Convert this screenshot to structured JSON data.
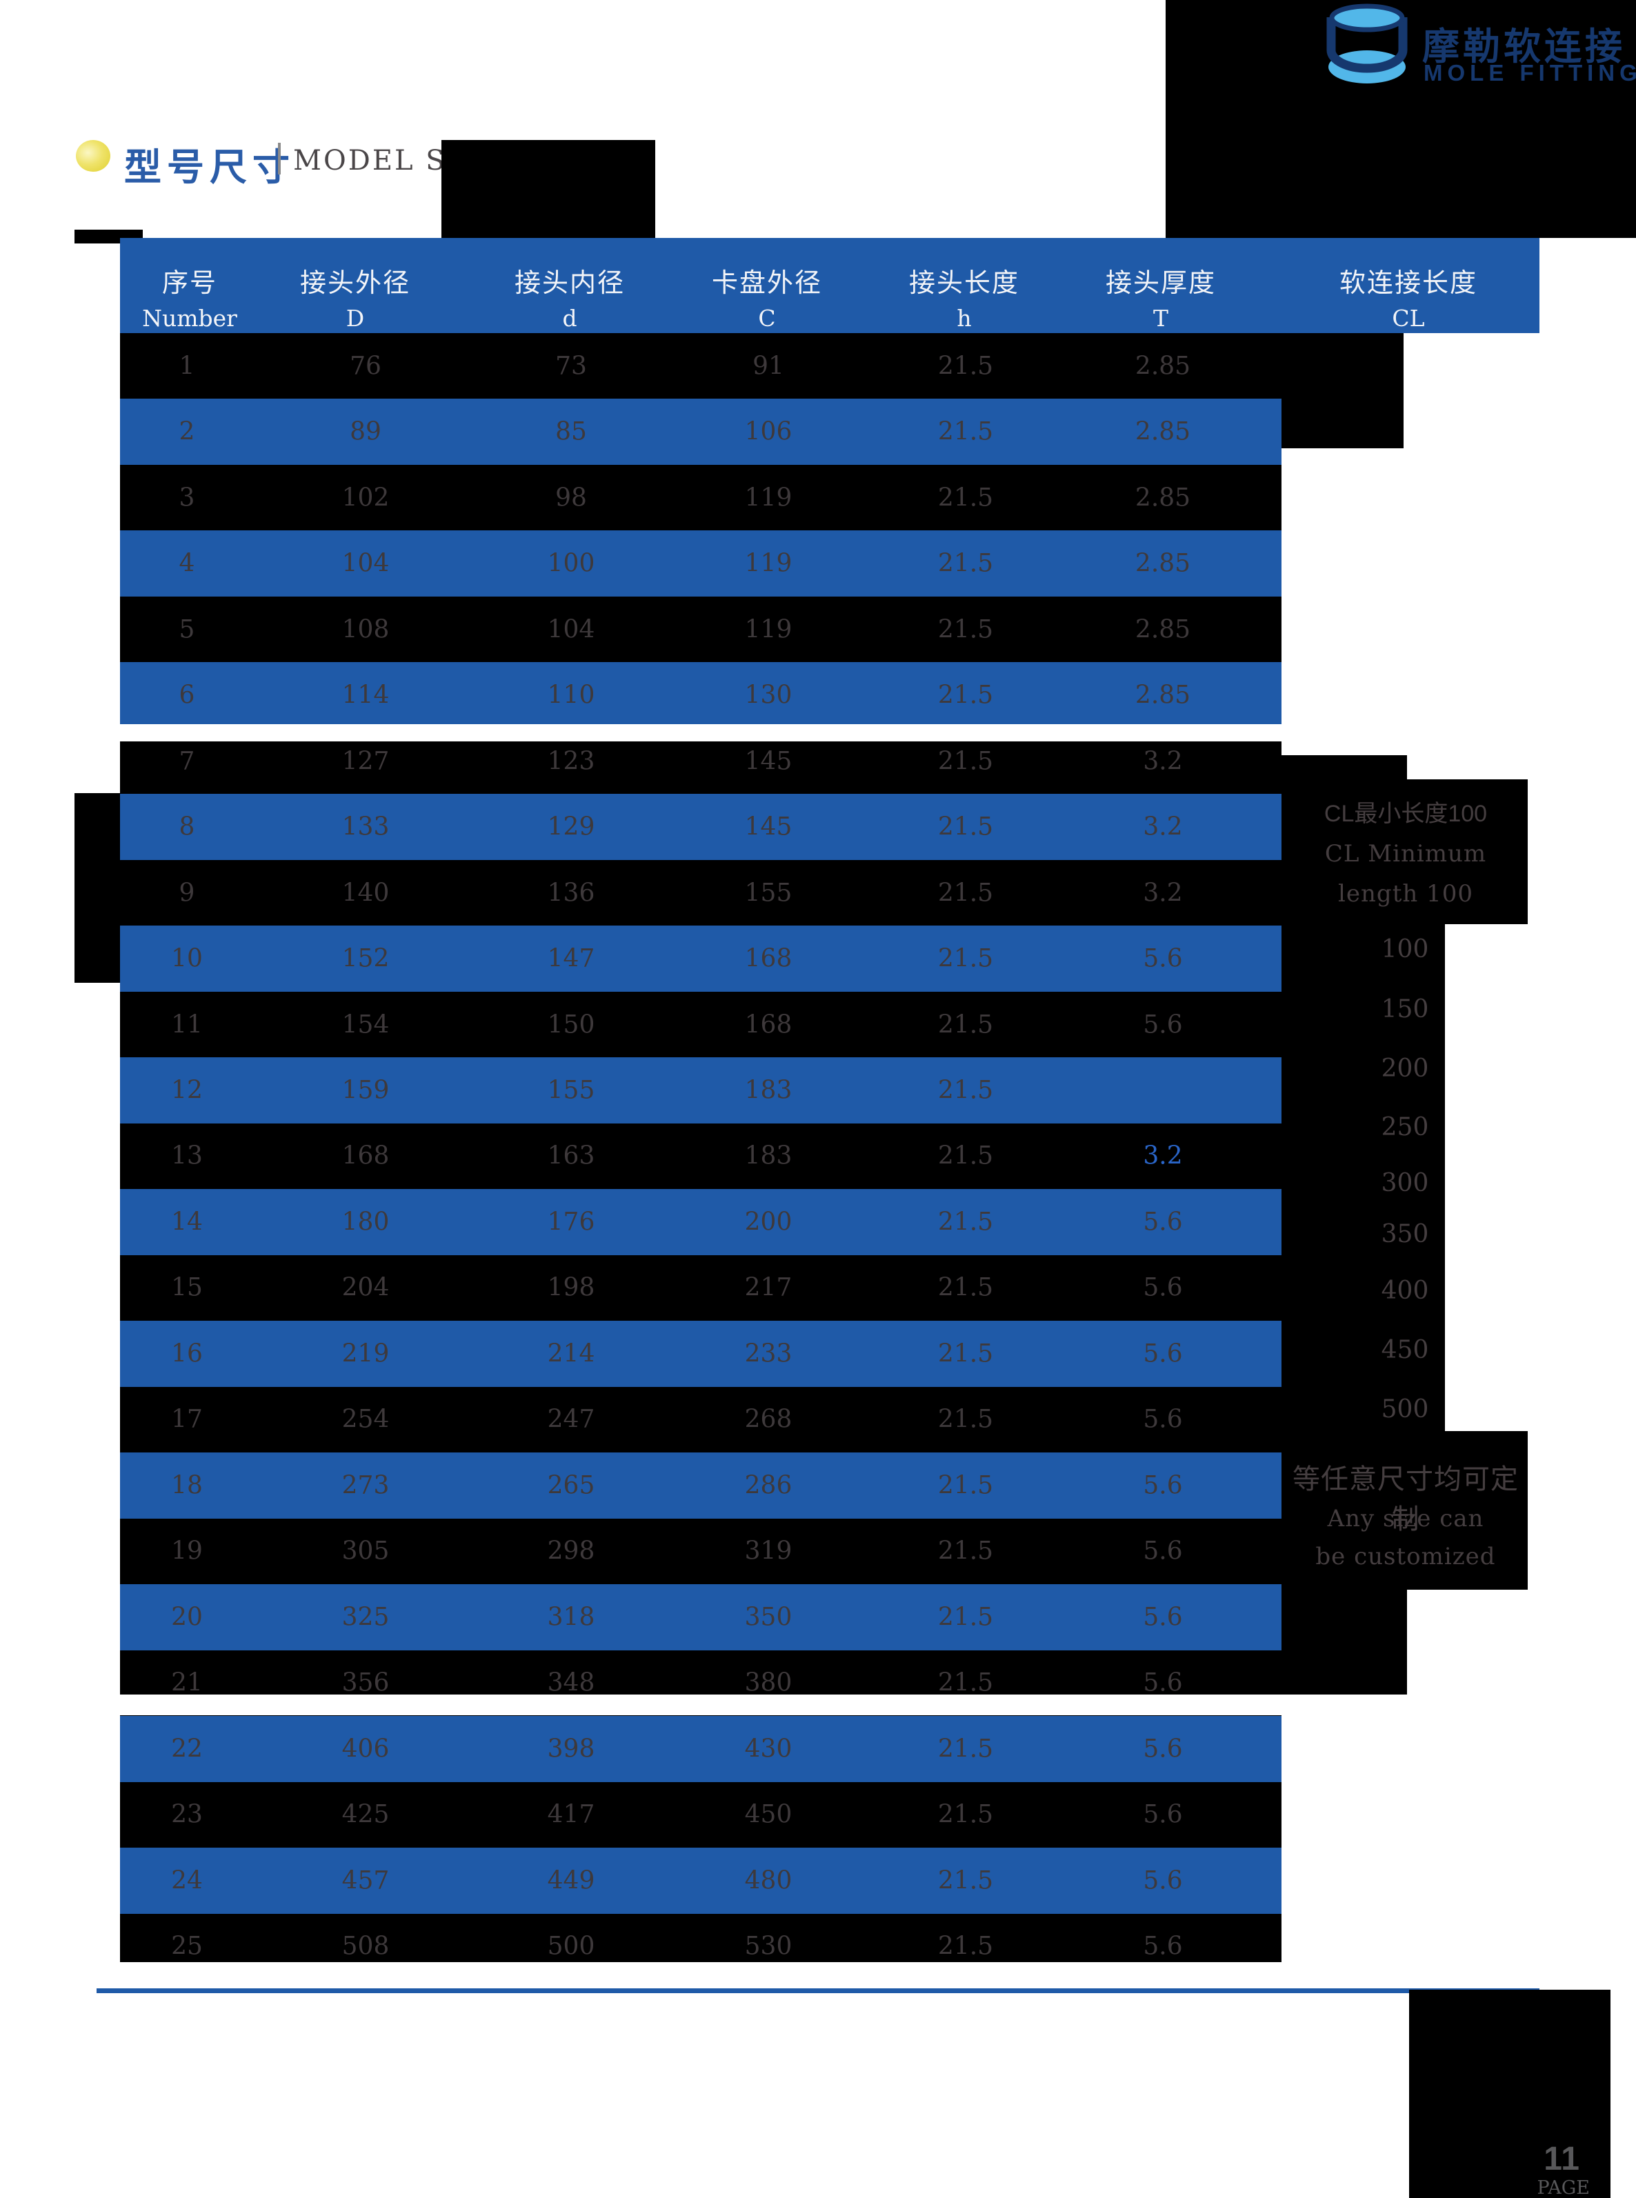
{
  "logo": {
    "icon": "cylinder-fitting-logo",
    "title_cn": "摩勒软连接",
    "title_en": "MOLE FITTING"
  },
  "section": {
    "title_cn": "型号尺寸",
    "title_en": "MODEL SIZE"
  },
  "table": {
    "columns": [
      {
        "cn": "序号",
        "en": "Number"
      },
      {
        "cn": "接头外径",
        "en": "D"
      },
      {
        "cn": "接头内径",
        "en": "d"
      },
      {
        "cn": "卡盘外径",
        "en": "C"
      },
      {
        "cn": "接头长度",
        "en": "h"
      },
      {
        "cn": "接头厚度",
        "en": "T"
      },
      {
        "cn": "软连接长度",
        "en": "CL"
      }
    ],
    "rows": [
      [
        "1",
        "76",
        "73",
        "91",
        "21.5",
        "2.85"
      ],
      [
        "2",
        "89",
        "85",
        "106",
        "21.5",
        "2.85"
      ],
      [
        "3",
        "102",
        "98",
        "119",
        "21.5",
        "2.85"
      ],
      [
        "4",
        "104",
        "100",
        "119",
        "21.5",
        "2.85"
      ],
      [
        "5",
        "108",
        "104",
        "119",
        "21.5",
        "2.85"
      ],
      [
        "6",
        "114",
        "110",
        "130",
        "21.5",
        "2.85"
      ],
      [
        "7",
        "127",
        "123",
        "145",
        "21.5",
        "3.2"
      ],
      [
        "8",
        "133",
        "129",
        "145",
        "21.5",
        "3.2"
      ],
      [
        "9",
        "140",
        "136",
        "155",
        "21.5",
        "3.2"
      ],
      [
        "10",
        "152",
        "147",
        "168",
        "21.5",
        "5.6"
      ],
      [
        "11",
        "154",
        "150",
        "168",
        "21.5",
        "5.6"
      ],
      [
        "12",
        "159",
        "155",
        "183",
        "21.5",
        ""
      ],
      [
        "13",
        "168",
        "163",
        "183",
        "21.5",
        "3.2"
      ],
      [
        "14",
        "180",
        "176",
        "200",
        "21.5",
        "5.6"
      ],
      [
        "15",
        "204",
        "198",
        "217",
        "21.5",
        "5.6"
      ],
      [
        "16",
        "219",
        "214",
        "233",
        "21.5",
        "5.6"
      ],
      [
        "17",
        "254",
        "247",
        "268",
        "21.5",
        "5.6"
      ],
      [
        "18",
        "273",
        "265",
        "286",
        "21.5",
        "5.6"
      ],
      [
        "19",
        "305",
        "298",
        "319",
        "21.5",
        "5.6"
      ],
      [
        "20",
        "325",
        "318",
        "350",
        "21.5",
        "5.6"
      ],
      [
        "21",
        "356",
        "348",
        "380",
        "21.5",
        "5.6"
      ],
      [
        "22",
        "406",
        "398",
        "430",
        "21.5",
        "5.6"
      ],
      [
        "23",
        "425",
        "417",
        "450",
        "21.5",
        "5.6"
      ],
      [
        "24",
        "457",
        "449",
        "480",
        "21.5",
        "5.6"
      ],
      [
        "25",
        "508",
        "500",
        "530",
        "21.5",
        "5.6"
      ]
    ],
    "highlight_cell": {
      "row_index": 12,
      "col_index": 5
    }
  },
  "cl_column": {
    "note_cn": "CL最小长度100",
    "note_en_line1": "CL Minimum",
    "note_en_line2": "length 100",
    "values": [
      "100",
      "150",
      "200",
      "250",
      "300",
      "350",
      "400",
      "450",
      "500"
    ],
    "footer_cn": "等任意尺寸均可定制",
    "footer_en_line1": "Any size can",
    "footer_en_line2": "be customized"
  },
  "footer": {
    "page_number": "11",
    "page_label": "PAGE"
  },
  "colors": {
    "accent_blue": "#1f5aa8",
    "row_black": "#000000",
    "table_text_gray": "#3e393b",
    "highlight_blue": "#2a65c8",
    "title_blue": "#2a5ca8",
    "logo_navy": "#16386e",
    "logo_lightblue": "#52b7e9",
    "bullet_yellow": "#e3d42e",
    "page_number_gray": "#58585a"
  }
}
